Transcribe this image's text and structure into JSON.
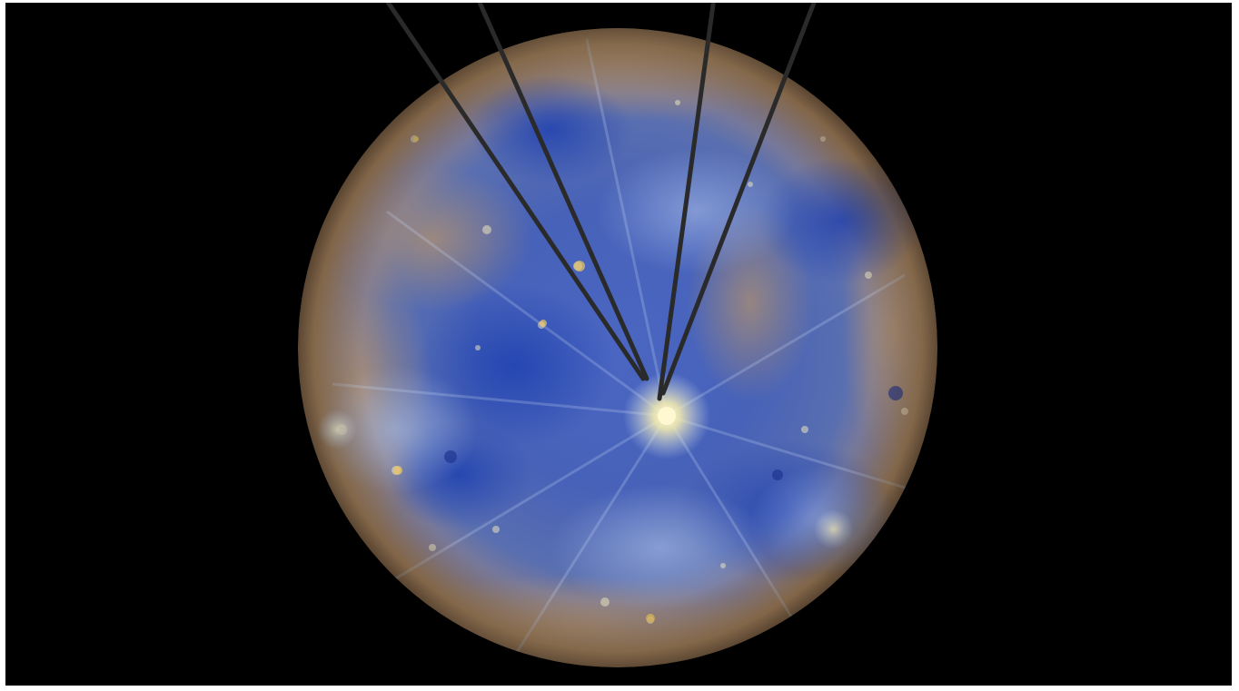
{
  "image": {
    "subject": "planet-globe",
    "colors": {
      "background": "#000000",
      "frame_border": "#ffffff",
      "surface_blue": "#3f5fb8",
      "surface_deep_blue": "#1f3f9e",
      "surface_tan": "#b08a5e",
      "surface_light": "#c9d4ec",
      "bright_crater": "#fff6c8",
      "pointer_lines": "#2a2a2a"
    }
  }
}
